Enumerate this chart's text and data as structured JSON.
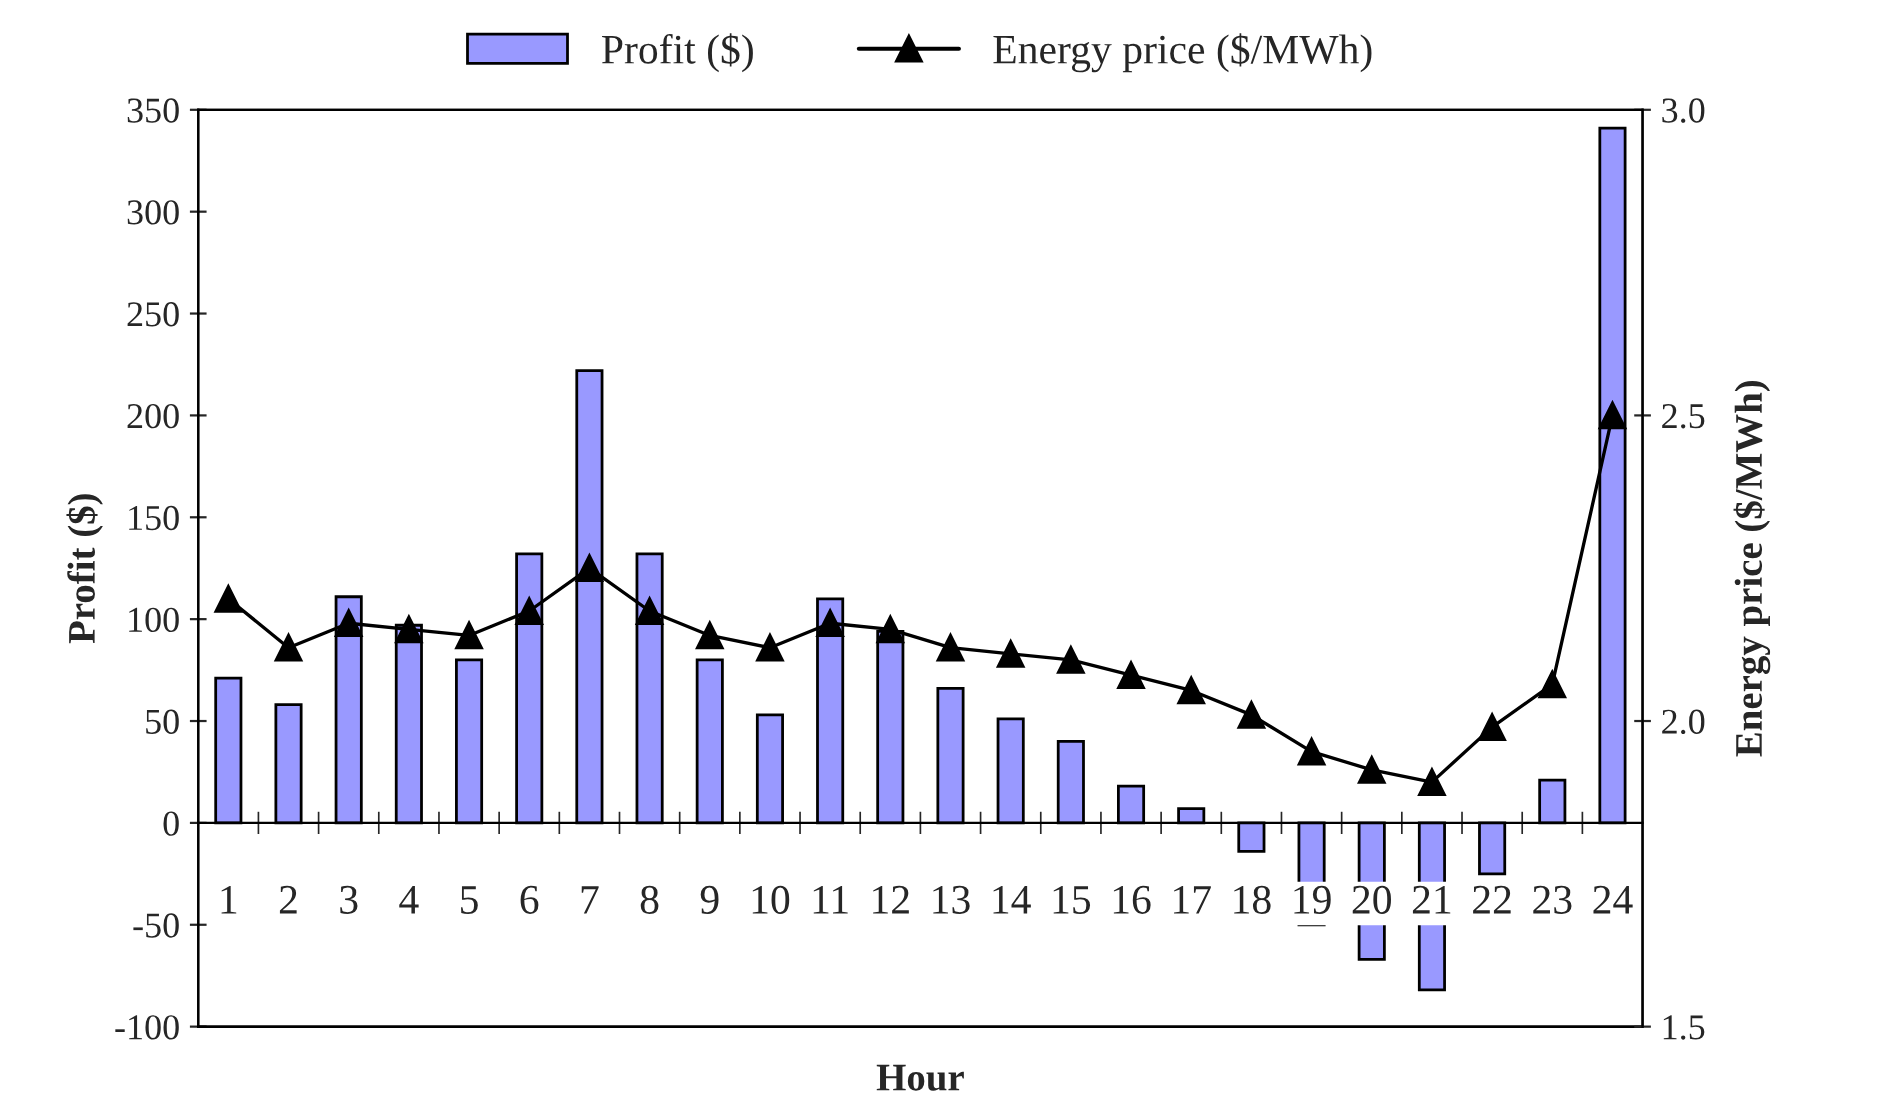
{
  "chart_data": {
    "type": "bar",
    "xlabel": "Hour",
    "ylabel": "Profit ($)",
    "y2label": "Energy price ($/MWh)",
    "categories": [
      "1",
      "2",
      "3",
      "4",
      "5",
      "6",
      "7",
      "8",
      "9",
      "10",
      "11",
      "12",
      "13",
      "14",
      "15",
      "16",
      "17",
      "18",
      "19",
      "20",
      "21",
      "22",
      "23",
      "24"
    ],
    "series": [
      {
        "name": "Profit ($)",
        "color": "#9999ff",
        "values": [
          71,
          58,
          111,
          97,
          80,
          132,
          222,
          132,
          80,
          53,
          110,
          94,
          66,
          51,
          40,
          18,
          7,
          -14,
          -50,
          -67,
          -82,
          -25,
          21,
          341
        ]
      },
      {
        "name": "Energy price ($/MWh)",
        "type": "line",
        "axis": "y2",
        "color": "#000000",
        "marker": "triangle",
        "line_style": "solid",
        "values": [
          2.2,
          2.12,
          2.16,
          2.15,
          2.14,
          2.18,
          2.25,
          2.18,
          2.14,
          2.12,
          2.16,
          2.15,
          2.12,
          2.11,
          2.1,
          2.075,
          2.05,
          2.01,
          1.95,
          1.92,
          1.9,
          1.99,
          2.06,
          2.5
        ]
      }
    ],
    "ylim": [
      -100,
      350
    ],
    "yticks": [
      -100,
      -50,
      0,
      50,
      100,
      150,
      200,
      250,
      300,
      350
    ],
    "y2lim": [
      1.5,
      3.0
    ],
    "y2ticks": [
      {
        "value": 1.5,
        "label": "1.5"
      },
      {
        "value": 2.0,
        "label": "2.0"
      },
      {
        "value": 2.5,
        "label": "2.5"
      },
      {
        "value": 3.0,
        "label": "3.0"
      }
    ],
    "grid": false,
    "legend": "top"
  }
}
